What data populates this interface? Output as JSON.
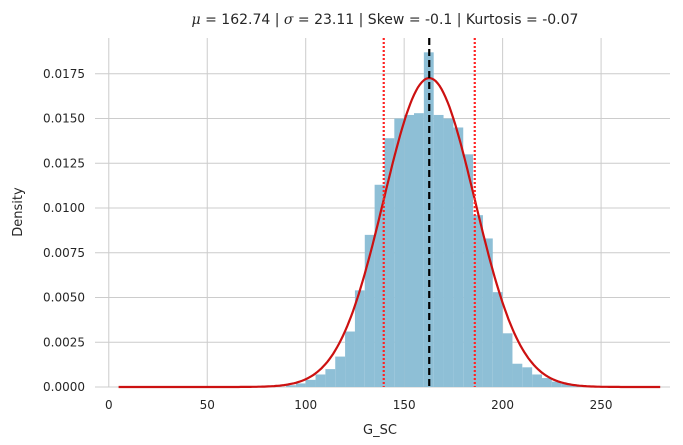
{
  "chart_data": {
    "type": "histogram",
    "title": {
      "mu_symbol": "μ",
      "mu_value": " = 162.74",
      "sigma_symbol": "σ",
      "sigma_value": " = 23.11",
      "rest": " | Skew = -0.1 | Kurtosis = -0.07",
      "sep": " | "
    },
    "xlabel": "G_SC",
    "ylabel": "Density",
    "xlim": [
      -7,
      285
    ],
    "ylim": [
      0,
      0.0195
    ],
    "x_ticks": [
      0,
      50,
      100,
      150,
      200,
      250
    ],
    "y_ticks": [
      0.0,
      0.0025,
      0.005,
      0.0075,
      0.01,
      0.0125,
      0.015,
      0.0175
    ],
    "y_tick_labels": [
      "0.0000",
      "0.0025",
      "0.0050",
      "0.0075",
      "0.0100",
      "0.0125",
      "0.0150",
      "0.0175"
    ],
    "grid": true,
    "histogram": {
      "color": "#8ebfd6",
      "bin_width": 5,
      "bin_starts": [
        90,
        95,
        100,
        105,
        110,
        115,
        120,
        125,
        130,
        135,
        140,
        145,
        150,
        155,
        160,
        165,
        170,
        175,
        180,
        185,
        190,
        195,
        200,
        205,
        210,
        215,
        220,
        225,
        230,
        235,
        240
      ],
      "densities": [
        0.0001,
        0.0002,
        0.0004,
        0.0007,
        0.001,
        0.0017,
        0.0031,
        0.0054,
        0.0085,
        0.0113,
        0.0139,
        0.015,
        0.0152,
        0.0153,
        0.0187,
        0.0152,
        0.015,
        0.0145,
        0.013,
        0.0096,
        0.0083,
        0.0053,
        0.003,
        0.0013,
        0.0011,
        0.0007,
        0.0005,
        0.0003,
        0.0002,
        0.0001,
        5e-05
      ]
    },
    "normal_curve": {
      "mean": 162.74,
      "std": 23.11,
      "color": "#cc1111",
      "x_range": [
        5,
        280
      ]
    },
    "mean_line": {
      "x": 162.74,
      "color": "#000000",
      "style": "dashed"
    },
    "std_lines": {
      "x": [
        139.63,
        185.85
      ],
      "color": "#ff2222",
      "style": "dotted"
    }
  }
}
